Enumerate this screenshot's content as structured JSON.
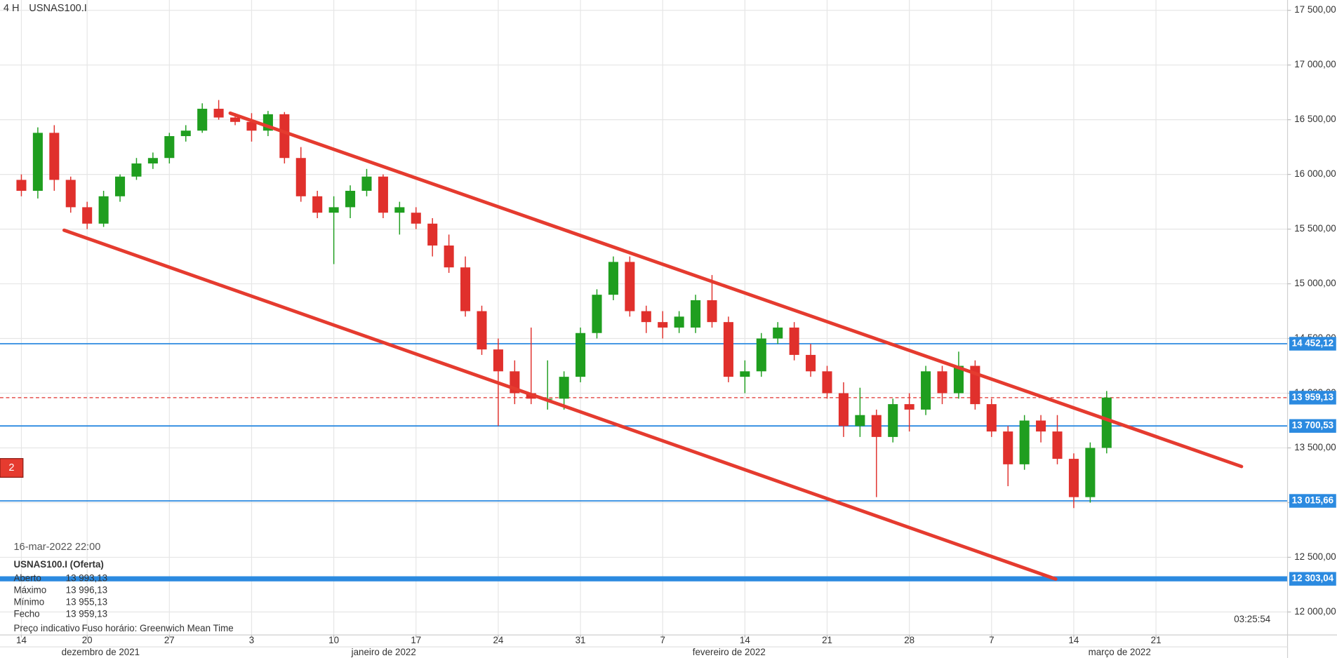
{
  "chart_data": {
    "type": "candlestick",
    "timeframe": "4 H",
    "title": "USNAS100.I",
    "open": [
      15950,
      15850,
      16380,
      15950,
      15700,
      15550,
      15800,
      15980,
      16100,
      16150,
      16350,
      16400,
      16600,
      16520,
      16480,
      16400,
      16550,
      16150,
      15800,
      15650,
      15700,
      15850,
      15980,
      15650,
      15650,
      15550,
      15350,
      15150,
      14750,
      14400,
      14200,
      14000,
      13950,
      13950,
      14150,
      14550,
      14900,
      15200,
      14750,
      14650,
      14600,
      14600,
      14850,
      14650,
      14150,
      14200,
      14500,
      14600,
      14350,
      14200,
      14000,
      13700,
      13800,
      13600,
      13900,
      13850,
      14200,
      14000,
      14250,
      13900,
      13650,
      13350,
      13750,
      13650,
      13400,
      13050,
      13500
    ],
    "high": [
      16000,
      16430,
      16450,
      15980,
      15750,
      15850,
      16000,
      16150,
      16200,
      16380,
      16450,
      16650,
      16680,
      16560,
      16560,
      16580,
      16570,
      16250,
      15850,
      15800,
      15900,
      16050,
      16000,
      15750,
      15700,
      15600,
      15450,
      15250,
      14800,
      14500,
      14300,
      14600,
      14300,
      14200,
      14600,
      14950,
      15250,
      15250,
      14800,
      14750,
      14750,
      14900,
      15080,
      14700,
      14300,
      14550,
      14650,
      14650,
      14450,
      14250,
      14100,
      14050,
      13850,
      13950,
      14000,
      14250,
      14250,
      14380,
      14300,
      13950,
      13700,
      13800,
      13800,
      13800,
      13450,
      13550,
      14020
    ],
    "low": [
      15800,
      15780,
      15850,
      15650,
      15500,
      15520,
      15750,
      15950,
      16050,
      16100,
      16300,
      16380,
      16500,
      16450,
      16300,
      16350,
      16100,
      15750,
      15600,
      15180,
      15600,
      15800,
      15600,
      15450,
      15500,
      15250,
      15100,
      14700,
      14350,
      13700,
      13900,
      13900,
      13850,
      13850,
      14100,
      14500,
      14850,
      14700,
      14550,
      14500,
      14550,
      14550,
      14600,
      14100,
      14000,
      14150,
      14450,
      14300,
      14150,
      13950,
      13600,
      13600,
      13050,
      13550,
      13650,
      13800,
      13900,
      13950,
      13850,
      13600,
      13150,
      13300,
      13550,
      13350,
      12950,
      13000,
      13450
    ],
    "close": [
      15850,
      16380,
      15950,
      15700,
      15550,
      15800,
      15980,
      16100,
      16150,
      16350,
      16400,
      16600,
      16520,
      16480,
      16400,
      16550,
      16150,
      15800,
      15650,
      15700,
      15850,
      15980,
      15650,
      15700,
      15550,
      15350,
      15150,
      14750,
      14400,
      14200,
      14000,
      13950,
      13950,
      14150,
      14550,
      14900,
      15200,
      14750,
      14650,
      14600,
      14700,
      14850,
      14650,
      14150,
      14200,
      14500,
      14600,
      14350,
      14200,
      14000,
      13700,
      13800,
      13600,
      13900,
      13850,
      14200,
      14000,
      14250,
      13900,
      13650,
      13350,
      13750,
      13650,
      13400,
      13050,
      13500,
      13960
    ],
    "up_color": "#1f9e1f",
    "down_color": "#e0302c",
    "ylim": [
      11790,
      17594
    ],
    "yticks": [
      {
        "value": 12000,
        "label": "12 000,00"
      },
      {
        "value": 12500,
        "label": "12 500,00"
      },
      {
        "value": 13000,
        "label": "13 000,00"
      },
      {
        "value": 13500,
        "label": "13 500,00"
      },
      {
        "value": 14000,
        "label": "14 000,00"
      },
      {
        "value": 14500,
        "label": "14 500,00"
      },
      {
        "value": 15000,
        "label": "15 000,00"
      },
      {
        "value": 15500,
        "label": "15 500,00"
      },
      {
        "value": 16000,
        "label": "16 000,00"
      },
      {
        "value": 16500,
        "label": "16 500,00"
      },
      {
        "value": 17000,
        "label": "17 000,00"
      },
      {
        "value": 17500,
        "label": "17 500,00"
      }
    ],
    "xlim": [
      -1.3,
      77
    ],
    "xticks": [
      {
        "value": 0,
        "label": "14"
      },
      {
        "value": 4,
        "label": "20"
      },
      {
        "value": 9,
        "label": "27"
      },
      {
        "value": 14,
        "label": "3"
      },
      {
        "value": 19,
        "label": "10"
      },
      {
        "value": 24,
        "label": "17"
      },
      {
        "value": 29,
        "label": "24"
      },
      {
        "value": 34,
        "label": "31"
      },
      {
        "value": 39,
        "label": "7"
      },
      {
        "value": 44,
        "label": "14"
      },
      {
        "value": 49,
        "label": "21"
      },
      {
        "value": 54,
        "label": "28"
      },
      {
        "value": 59,
        "label": "7"
      },
      {
        "value": 64,
        "label": "14"
      },
      {
        "value": 69,
        "label": "21"
      }
    ],
    "month_labels": [
      "dezembro de 2021",
      "janeiro de 2022",
      "fevereiro de 2022",
      "março de 2022"
    ],
    "grid": true,
    "level_color": "#2b8ae0",
    "levels": [
      {
        "value": 14452.12,
        "label": "14 452,12"
      },
      {
        "value": 13700.53,
        "label": "13 700,53"
      },
      {
        "value": 13015.66,
        "label": "13 015,66"
      },
      {
        "value": 12303.04,
        "label": "12 303,04"
      }
    ],
    "last_price": {
      "value": 13959.13,
      "label": "13 959,13"
    },
    "trendline_color": "#e53b2f",
    "trendlines": [
      {
        "x": [
          12.7,
          74.2
        ],
        "y": [
          16560,
          13330
        ]
      },
      {
        "x": [
          2.6,
          62.9
        ],
        "y": [
          15490,
          12301
        ]
      }
    ]
  },
  "badge": "2",
  "info": {
    "datetime": "16-mar-2022 22:00",
    "symbol": "USNAS100.I (Oferta)",
    "rows": [
      [
        "Aberto",
        "13 993,13"
      ],
      [
        "Máximo",
        "13 996,13"
      ],
      [
        "Mínimo",
        "13 955,13"
      ],
      [
        "Fecho",
        "13 959,13"
      ]
    ],
    "note": "Preço indicativo",
    "timezone": "Fuso horário: Greenwich Mean Time"
  },
  "timer": "03:25:54"
}
